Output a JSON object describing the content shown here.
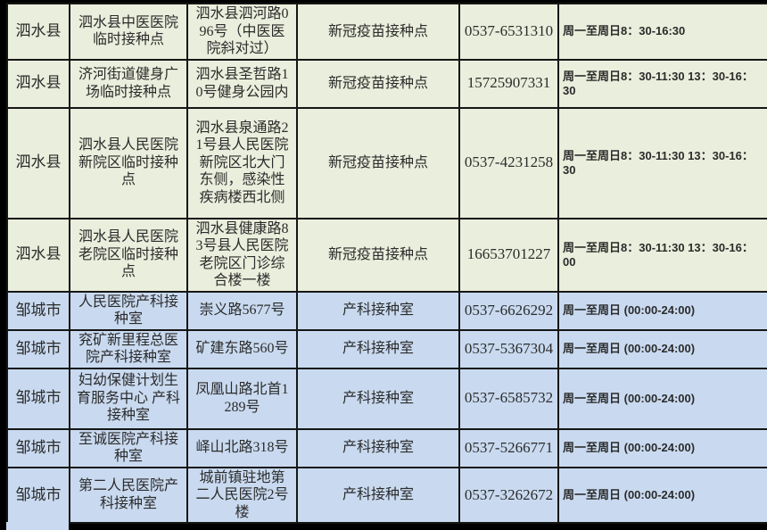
{
  "colors": {
    "page_bg": "#000000",
    "siushui_section_bg": "#eaeedc",
    "zoucheng_section_bg": "#c9daf0",
    "grid_border": "#161616",
    "text": "#2b2b2b"
  },
  "table": {
    "columns": [
      {
        "key": "county"
      },
      {
        "key": "name"
      },
      {
        "key": "address"
      },
      {
        "key": "type"
      },
      {
        "key": "phone"
      },
      {
        "key": "hours"
      }
    ],
    "rows": [
      {
        "group": "green",
        "county": "泗水县",
        "name": "泗水县中医医院临时接种点",
        "address": "泗水县泗河路096号（中医医院斜对过）",
        "type": "新冠疫苗接种点",
        "phone": "0537-6531310",
        "hours": "周一至周日8：30-16:30"
      },
      {
        "group": "green",
        "county": "泗水县",
        "name": "济河街道健身广场临时接种点",
        "address": "泗水县圣哲路10号健身公园内",
        "type": "新冠疫苗接种点",
        "phone": "15725907331",
        "hours": "周一至周日8：30-11:30 13：30-16：30"
      },
      {
        "group": "green",
        "county": "泗水县",
        "name": "泗水县人民医院新院区临时接种点",
        "address": "泗水县泉通路21号县人民医院新院区北大门东侧，感染性疾病楼西北侧",
        "type": "新冠疫苗接种点",
        "phone": "0537-4231258",
        "hours": "周一至周日8：30-11:30 13：30-16：30"
      },
      {
        "group": "green",
        "county": "泗水县",
        "name": "泗水县人民医院老院区临时接种点",
        "address": "泗水县健康路83号县人民医院老院区门诊综合楼一楼",
        "type": "新冠疫苗接种点",
        "phone": "16653701227",
        "hours": "周一至周日8：30-11:30 13：30-16：00"
      },
      {
        "group": "blue",
        "county": "邹城市",
        "name": "人民医院产科接种室",
        "address": "崇义路5677号",
        "type": "产科接种室",
        "phone": "0537-6626292",
        "hours": "周一至周日 (00:00-24:00)"
      },
      {
        "group": "blue",
        "county": "邹城市",
        "name": "兖矿新里程总医院产科接种室",
        "address": "矿建东路560号",
        "type": "产科接种室",
        "phone": "0537-5367304",
        "hours": "周一至周日 (00:00-24:00)"
      },
      {
        "group": "blue",
        "county": "邹城市",
        "name": "妇幼保健计划生育服务中心 产科接种室",
        "address": "凤凰山路北首1289号",
        "type": "产科接种室",
        "phone": "0537-6585732",
        "hours": "周一至周日 (00:00-24:00)"
      },
      {
        "group": "blue",
        "county": "邹城市",
        "name": "至诚医院产科接种室",
        "address": "峄山北路318号",
        "type": "产科接种室",
        "phone": "0537-5266771",
        "hours": "周一至周日 (00:00-24:00)"
      },
      {
        "group": "blue",
        "county": "邹城市",
        "name": "第二人民医院产科接种室",
        "address": "城前镇驻地第二人民医院2号楼",
        "type": "产科接种室",
        "phone": "0537-3262672",
        "hours": "周一至周日 (00:00-24:00)"
      }
    ]
  }
}
